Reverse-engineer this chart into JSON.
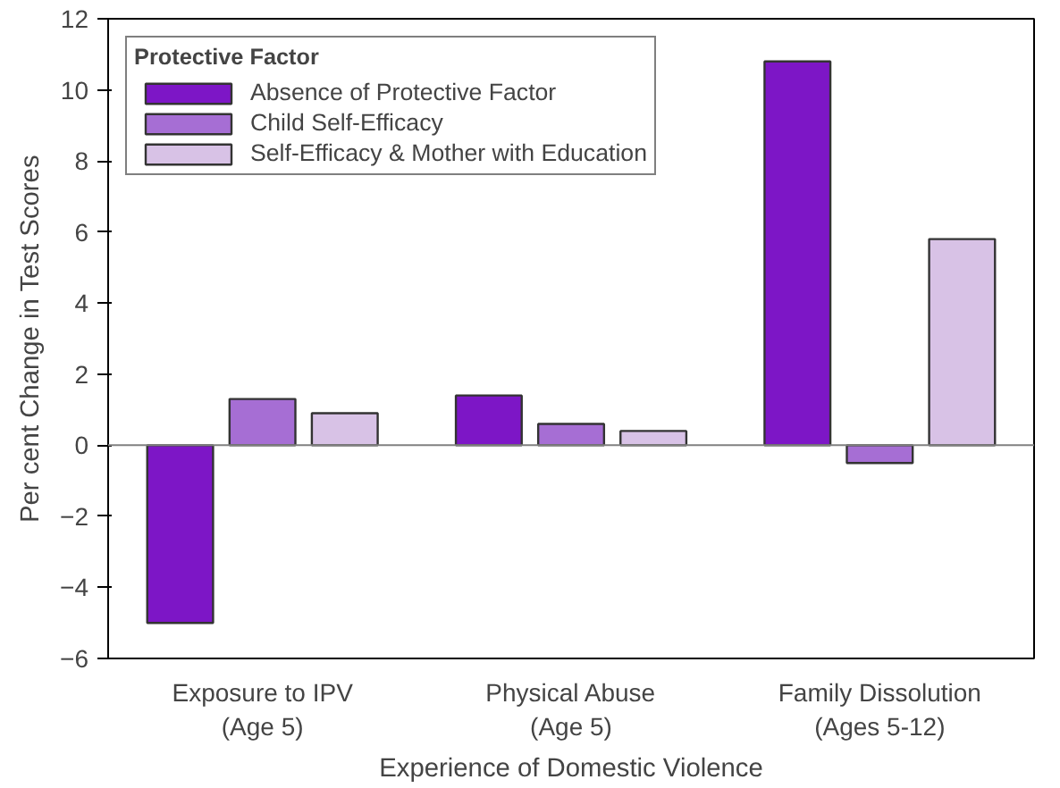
{
  "chart_data": {
    "type": "bar",
    "xlabel": "Experience of Domestic Violence",
    "ylabel": "Per cent Change in Test Scores",
    "legend_title": "Protective Factor",
    "categories": [
      "Exposure to IPV\n(Age 5)",
      "Physical Abuse\n(Age 5)",
      "Family Dissolution\n(Ages 5-12)"
    ],
    "series": [
      {
        "name": "Absence of Protective Factor",
        "color": "#7d16c6",
        "values": [
          -5.0,
          1.4,
          10.8
        ]
      },
      {
        "name": "Child Self-Efficacy",
        "color": "#a66ed4",
        "values": [
          1.3,
          0.6,
          -0.5
        ]
      },
      {
        "name": "Self-Efficacy & Mother with Education",
        "color": "#d8c2e6",
        "values": [
          0.9,
          0.4,
          5.8
        ]
      }
    ],
    "ylim": [
      -6,
      12
    ],
    "yticks": [
      -6,
      -4,
      -2,
      0,
      2,
      4,
      6,
      8,
      10,
      12
    ],
    "grid": false,
    "legend": "top left",
    "ref_lines": [
      {
        "axis": "y",
        "value": 0,
        "color": "#808080"
      }
    ]
  }
}
